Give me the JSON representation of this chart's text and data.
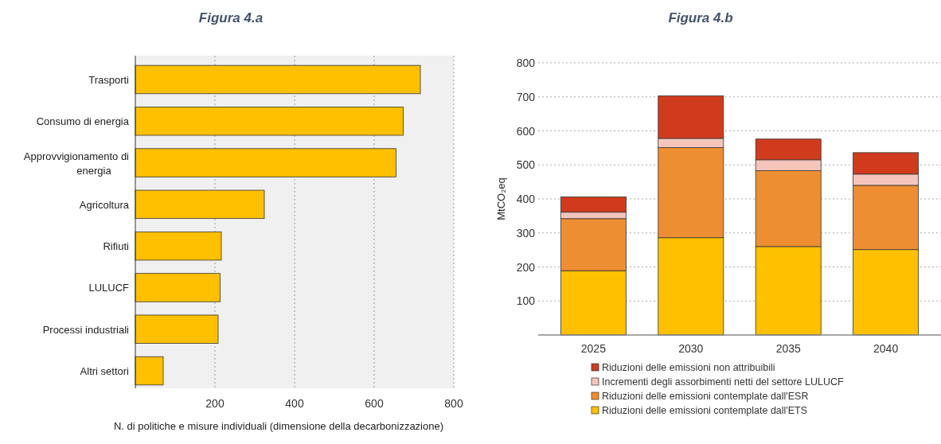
{
  "chart_data": [
    {
      "type": "bar",
      "title": "Figura 4.a",
      "orientation": "horizontal",
      "categories": [
        "Trasporti",
        "Consumo di energia",
        "Approvvigionamento di energia",
        "Agricoltura",
        "Rifiuti",
        "LULUCF",
        "Processi industriali",
        "Altri settori"
      ],
      "values": [
        716,
        673,
        655,
        324,
        216,
        213,
        208,
        70
      ],
      "color": "#ffc000",
      "xlim": [
        0,
        800
      ],
      "xticks": [
        200,
        400,
        600,
        800
      ],
      "xlabel": "N. di politiche e misure individuali (dimensione della decarbonizzazione)",
      "grid": "x"
    },
    {
      "type": "bar",
      "title": "Figura 4.b",
      "stacked": true,
      "categories": [
        "2025",
        "2030",
        "2035",
        "2040"
      ],
      "series": [
        {
          "name": "Riduzioni delle emissioni contemplate dall'ETS",
          "color": "#ffc000",
          "values": [
            189,
            286,
            260,
            251
          ]
        },
        {
          "name": "Riduzioni delle emissioni contemplate dall'ESR",
          "color": "#ee8e32",
          "values": [
            153,
            265,
            223,
            189
          ]
        },
        {
          "name": "Incrementi degli assorbimenti netti del settore LULUCF",
          "color": "#f5c5bc",
          "values": [
            19,
            27,
            32,
            33
          ]
        },
        {
          "name": "Riduzioni delle emissioni non attribuibili",
          "color": "#d03b1e",
          "values": [
            45,
            125,
            61,
            63
          ]
        }
      ],
      "ylim": [
        0,
        800
      ],
      "yticks": [
        100,
        200,
        300,
        400,
        500,
        600,
        700,
        800
      ],
      "ylabel": "MtCO₂eq",
      "grid": "y",
      "legend": "bottom"
    }
  ]
}
